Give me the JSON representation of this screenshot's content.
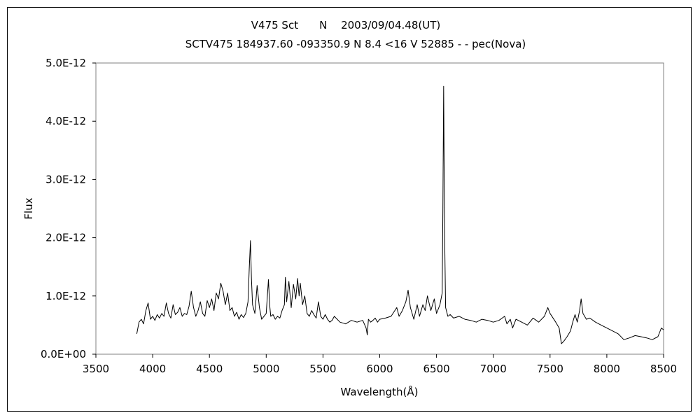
{
  "chart_data": {
    "type": "line",
    "title": "V475 Sct　　N　 2003/09/04.48(UT)",
    "subtitle": "SCTV475 184937.60 -093350.9 N 8.4 <16 V 52885 - - pec(Nova)",
    "xlabel": "Wavelength(Å)",
    "ylabel": "Flux",
    "xlim": [
      3500,
      8500
    ],
    "ylim": [
      0,
      5e-12
    ],
    "x_ticks": [
      3500,
      4000,
      4500,
      5000,
      5500,
      6000,
      6500,
      7000,
      7500,
      8000,
      8500
    ],
    "x_tick_labels": [
      "3500",
      "4000",
      "4500",
      "5000",
      "5500",
      "6000",
      "6500",
      "7000",
      "7500",
      "8000",
      "8500"
    ],
    "y_ticks": [
      0,
      1e-12,
      2e-12,
      3e-12,
      4e-12,
      5e-12
    ],
    "y_tick_labels": [
      "0.0E+00",
      "1.0E-12",
      "2.0E-12",
      "3.0E-12",
      "4.0E-12",
      "5.0E-12"
    ],
    "grid": false,
    "legend": "none",
    "line_color": "#000000",
    "series": [
      {
        "x": [
          3860,
          3880,
          3900,
          3920,
          3940,
          3960,
          3980,
          4000,
          4020,
          4040,
          4060,
          4080,
          4100,
          4120,
          4140,
          4160,
          4180,
          4200,
          4220,
          4240,
          4260,
          4280,
          4300,
          4320,
          4340,
          4360,
          4380,
          4400,
          4420,
          4440,
          4460,
          4480,
          4500,
          4520,
          4540,
          4560,
          4580,
          4600,
          4620,
          4640,
          4660,
          4680,
          4700,
          4720,
          4740,
          4760,
          4780,
          4800,
          4820,
          4840,
          4850,
          4861,
          4870,
          4880,
          4900,
          4920,
          4940,
          4960,
          4980,
          5000,
          5020,
          5030,
          5040,
          5060,
          5080,
          5100,
          5120,
          5140,
          5160,
          5169,
          5180,
          5200,
          5220,
          5240,
          5260,
          5276,
          5290,
          5300,
          5320,
          5340,
          5360,
          5380,
          5400,
          5420,
          5440,
          5460,
          5480,
          5500,
          5520,
          5540,
          5560,
          5580,
          5600,
          5650,
          5700,
          5750,
          5800,
          5850,
          5880,
          5890,
          5900,
          5920,
          5940,
          5960,
          5980,
          6000,
          6050,
          6100,
          6150,
          6170,
          6200,
          6230,
          6250,
          6270,
          6300,
          6330,
          6350,
          6380,
          6400,
          6420,
          6450,
          6480,
          6500,
          6530,
          6550,
          6556,
          6563,
          6570,
          6580,
          6600,
          6620,
          6650,
          6700,
          6750,
          6800,
          6850,
          6900,
          6950,
          7000,
          7050,
          7100,
          7120,
          7150,
          7170,
          7200,
          7250,
          7300,
          7350,
          7400,
          7450,
          7480,
          7500,
          7550,
          7580,
          7600,
          7620,
          7650,
          7680,
          7700,
          7720,
          7740,
          7760,
          7774,
          7790,
          7820,
          7850,
          7900,
          7950,
          8000,
          8050,
          8100,
          8150,
          8200,
          8250,
          8300,
          8350,
          8400,
          8450,
          8480,
          8500
        ],
        "y": [
          3.5e-13,
          5.5e-13,
          6e-13,
          5.2e-13,
          7.5e-13,
          8.8e-13,
          6e-13,
          6.5e-13,
          5.8e-13,
          6.8e-13,
          6.2e-13,
          7e-13,
          6.5e-13,
          8.8e-13,
          7e-13,
          6.2e-13,
          8.5e-13,
          6.8e-13,
          7.2e-13,
          8e-13,
          6.5e-13,
          7e-13,
          6.8e-13,
          8.2e-13,
          1.08e-12,
          8e-13,
          6.5e-13,
          7.5e-13,
          9e-13,
          7e-13,
          6.5e-13,
          9.2e-13,
          8e-13,
          9.5e-13,
          7.5e-13,
          1.05e-12,
          9.5e-13,
          1.22e-12,
          1.08e-12,
          8.5e-13,
          1.05e-12,
          7.5e-13,
          8e-13,
          6.5e-13,
          7.2e-13,
          6e-13,
          6.8e-13,
          6.3e-13,
          7e-13,
          9e-13,
          1.45e-12,
          1.95e-12,
          1.3e-12,
          8.5e-13,
          7e-13,
          1.18e-12,
          8e-13,
          6e-13,
          6.5e-13,
          7e-13,
          1.28e-12,
          8.5e-13,
          6.5e-13,
          6.8e-13,
          6e-13,
          6.5e-13,
          6.2e-13,
          7.5e-13,
          8.5e-13,
          1.32e-12,
          9e-13,
          1.25e-12,
          8e-13,
          1.2e-12,
          9.5e-13,
          1.3e-12,
          1e-12,
          1.22e-12,
          8.5e-13,
          1e-12,
          7e-13,
          6.5e-13,
          7.5e-13,
          6.8e-13,
          6.2e-13,
          9e-13,
          6.5e-13,
          6e-13,
          6.8e-13,
          6e-13,
          5.5e-13,
          5.8e-13,
          6.5e-13,
          5.5e-13,
          5.2e-13,
          5.8e-13,
          5.5e-13,
          5.8e-13,
          4.5e-13,
          3.3e-13,
          6e-13,
          5.5e-13,
          5.8e-13,
          6.2e-13,
          5.5e-13,
          6e-13,
          6.2e-13,
          6.5e-13,
          8e-13,
          6.5e-13,
          7.5e-13,
          9e-13,
          1.1e-12,
          8e-13,
          6e-13,
          8.5e-13,
          6.5e-13,
          8.5e-13,
          7.5e-13,
          1e-12,
          7.5e-13,
          9.5e-13,
          7e-13,
          8.5e-13,
          1.05e-12,
          2.5e-12,
          4.6e-12,
          2.2e-12,
          8e-13,
          6.5e-13,
          6.8e-13,
          6.2e-13,
          6.5e-13,
          6e-13,
          5.8e-13,
          5.5e-13,
          6e-13,
          5.8e-13,
          5.5e-13,
          5.8e-13,
          6.5e-13,
          5.2e-13,
          6e-13,
          4.5e-13,
          6e-13,
          5.5e-13,
          5e-13,
          6.2e-13,
          5.5e-13,
          6.5e-13,
          8e-13,
          7e-13,
          5.5e-13,
          4.5e-13,
          1.8e-13,
          2.2e-13,
          3e-13,
          4e-13,
          5.5e-13,
          6.8e-13,
          5.5e-13,
          7.5e-13,
          9.5e-13,
          7e-13,
          6e-13,
          6.2e-13,
          5.5e-13,
          5e-13,
          4.5e-13,
          4e-13,
          3.5e-13,
          2.5e-13,
          2.8e-13,
          3.2e-13,
          3e-13,
          2.8e-13,
          2.5e-13,
          3e-13,
          4.5e-13,
          4.2e-13
        ]
      }
    ]
  }
}
